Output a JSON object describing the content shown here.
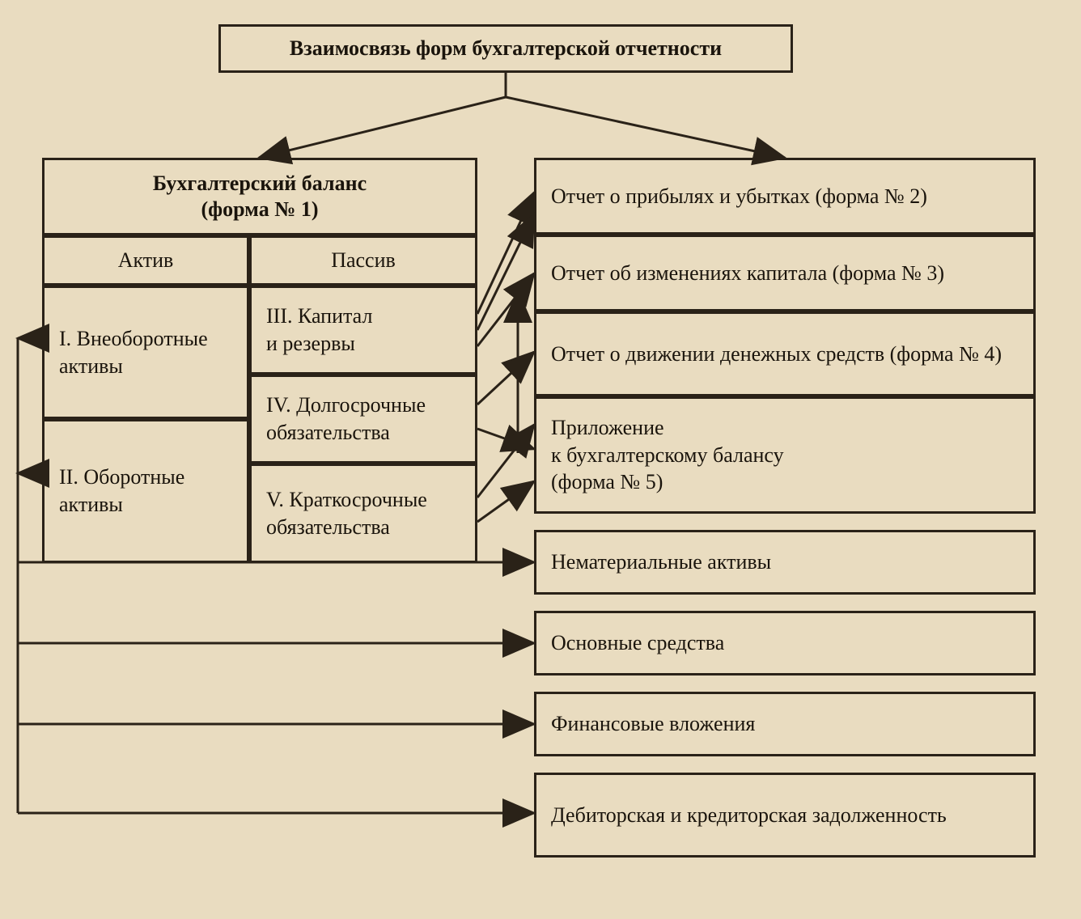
{
  "diagram": {
    "type": "flowchart",
    "background_color": "#e9dcc0",
    "stroke_color": "#2a2218",
    "stroke_width": 3,
    "font_family": "Times New Roman",
    "title_fontsize": 26,
    "node_fontsize": 26
  },
  "title": "Взаимосвязь форм бухгалтерской отчетности",
  "left": {
    "header": "Бухгалтерский баланс\n(форма № 1)",
    "col_aktiv": "Актив",
    "col_passiv": "Пассив",
    "asset1": "I.  Внеоборотные\n     активы",
    "asset2": "II. Оборотные\n     активы",
    "pas1": "III. Капитал\n      и резервы",
    "pas2": "IV. Долгосрочные\n     обязательства",
    "pas3": "V.  Краткосрочные\n     обязательства"
  },
  "right": {
    "r1": "Отчет о прибылях и убытках (форма № 2)",
    "r2": "Отчет об изменениях капитала (форма № 3)",
    "r3": "Отчет о движении денежных средств (форма № 4)",
    "r4": "Приложение\nк бухгалтерскому балансу\n(форма № 5)",
    "r5": "Нематериальные активы",
    "r6": "Основные средства",
    "r7": "Финансовые вложения",
    "r8": "Дебиторская и кредиторская задолженность"
  },
  "edges": [
    {
      "desc": "title to left header",
      "from": "title-bottom",
      "to": "leftHead-top"
    },
    {
      "desc": "title to right column top",
      "from": "title-bottom",
      "to": "r1-top"
    },
    {
      "desc": "pas1 to r1"
    },
    {
      "desc": "pas1 to r2"
    },
    {
      "desc": "pas2 to r2"
    },
    {
      "desc": "pas2 to r4"
    },
    {
      "desc": "pas3 to r3"
    },
    {
      "desc": "pas3 to r4"
    },
    {
      "desc": "r4 back up to r2"
    },
    {
      "desc": "asset1 left out to r5 via long horizontal"
    },
    {
      "desc": "asset2 left out to r6/r7/r8 via long horizontals"
    }
  ]
}
